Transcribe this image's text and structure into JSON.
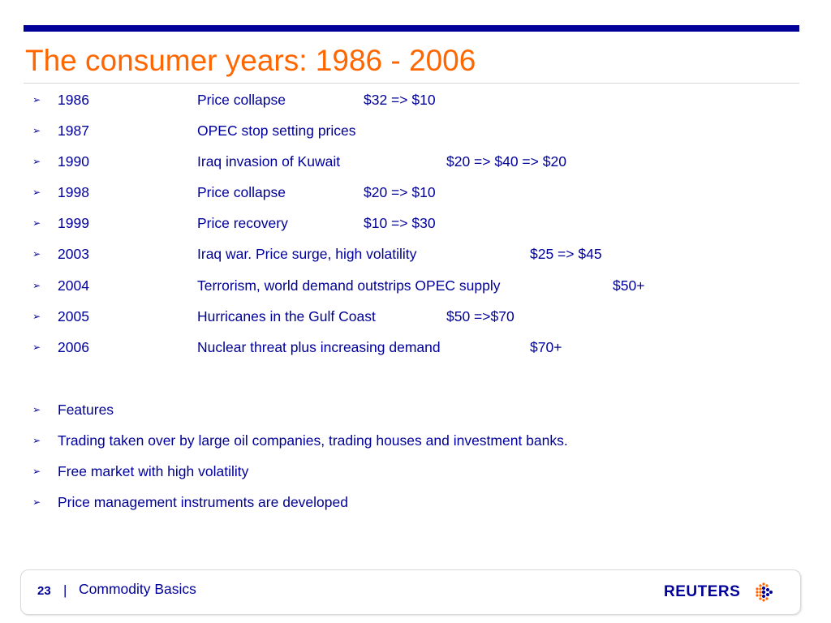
{
  "slide": {
    "title": "The consumer years: 1986 - 2006",
    "timeline": [
      {
        "year": "1986",
        "event": "Price collapse",
        "price": "$32 => $10"
      },
      {
        "year": "1987",
        "event": "OPEC stop setting prices",
        "price": ""
      },
      {
        "year": "1990",
        "event": "Iraq invasion of Kuwait",
        "price": "$20 => $40 => $20"
      },
      {
        "year": "1998",
        "event": "Price collapse",
        "price": "$20 => $10"
      },
      {
        "year": "1999",
        "event": "Price recovery",
        "price": "$10 => $30"
      },
      {
        "year": "2003",
        "event": "Iraq war. Price surge, high volatility",
        "price": "$25 => $45"
      },
      {
        "year": "2004",
        "event": "Terrorism, world demand outstrips OPEC supply",
        "price": "$50+"
      },
      {
        "year": "2005",
        "event": "Hurricanes in the Gulf Coast",
        "price": "$50 =>$70"
      },
      {
        "year": "2006",
        "event": "Nuclear threat plus increasing demand",
        "price": "$70+"
      }
    ],
    "features": [
      "Features",
      "Trading taken over by large oil companies, trading houses and investment banks.",
      "Free market with high volatility",
      "Price management instruments are developed"
    ],
    "bullet_glyph": "➢"
  },
  "footer": {
    "page_number": "23",
    "separator": "|",
    "title": "Commodity Basics",
    "logo_text": "REUTERS"
  },
  "colors": {
    "title": "#ff6600",
    "body_text": "#000099",
    "top_bar": "#000099"
  }
}
